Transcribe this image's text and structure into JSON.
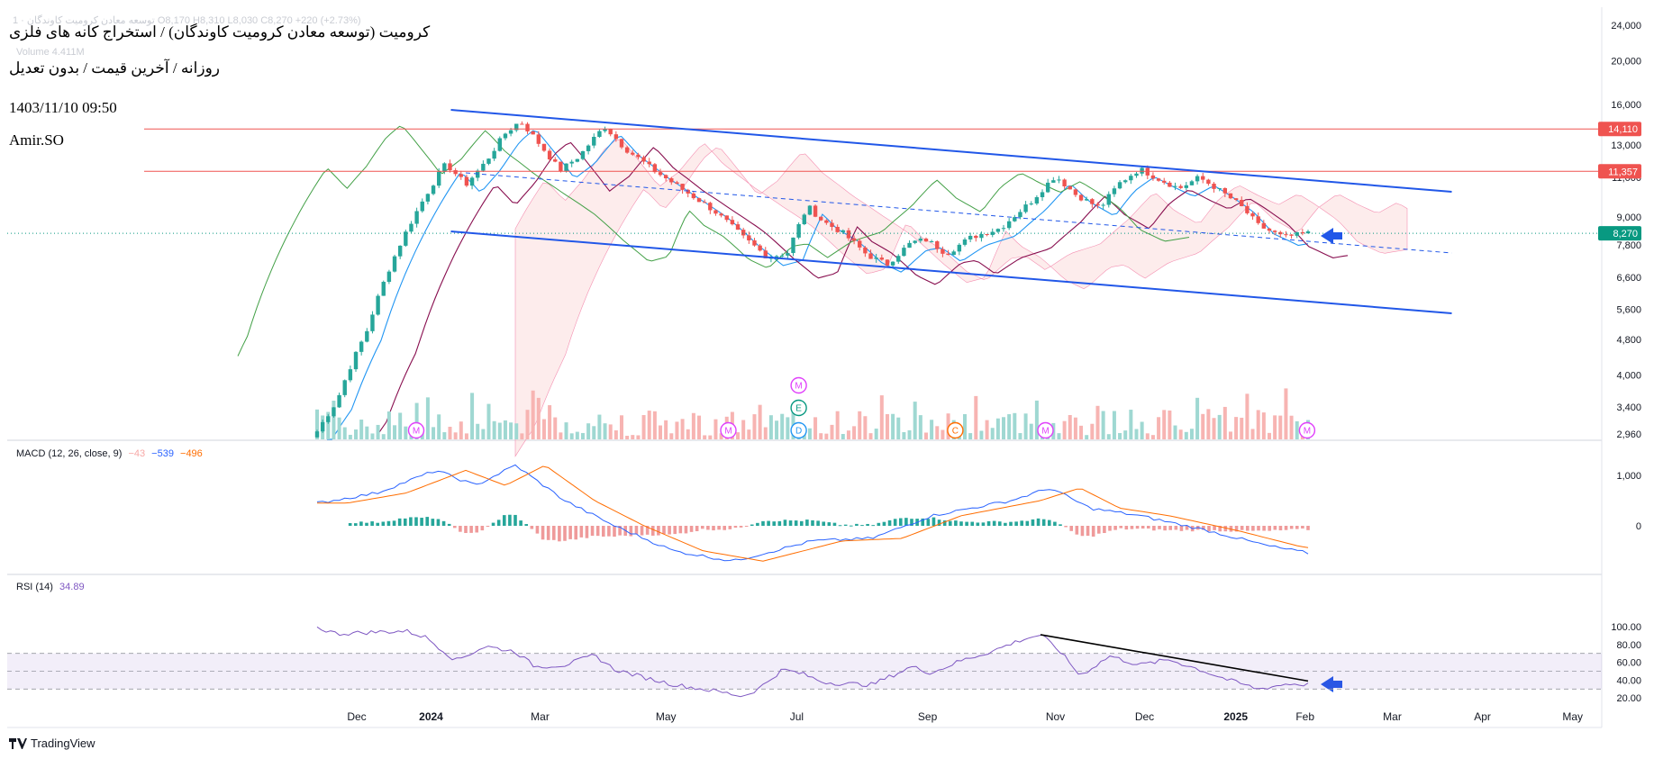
{
  "header": {
    "faint_ohlc": "1 · توسعه معادن کرومیت کاوندگان  O8,170  H8,310  L8,030  C8,270  +220 (+2.73%)",
    "faint_volume": "Volume  4.411M",
    "title": "کرومیت (توسعه معادن کرومیت کاوندگان) / استخراج کانه های فلزی",
    "subtitle": "روزانه / آخرین قیمت / بدون تعدیل",
    "datetime": "1403/11/10 09:50",
    "author": "Amir.SO"
  },
  "colors": {
    "up": "#26a69a",
    "down": "#ef5350",
    "channel": "#2157e8",
    "hline": "#ef5350",
    "rsi": "#7e57c2",
    "macd": "#2962ff",
    "signal": "#ff6d00",
    "last": "#089981"
  },
  "price_axis": {
    "ticks": [
      "24,000",
      "20,000",
      "16,000",
      "13,000",
      "11,000",
      "9,000",
      "7,800",
      "6,600",
      "5,600",
      "4,800",
      "4,000",
      "3,400",
      "2,960"
    ],
    "levels": [
      {
        "label": "14,110",
        "value": 14110
      },
      {
        "label": "11,357",
        "value": 11357
      }
    ],
    "last": {
      "label": "8,270",
      "value": 8270
    }
  },
  "macd": {
    "label": "MACD (12, 26, close, 9)",
    "hist": "−43",
    "macd": "−539",
    "signal": "−496",
    "ticks": [
      "1,000",
      "0"
    ]
  },
  "rsi": {
    "label": "RSI (14)",
    "value": "34.89",
    "ticks": [
      "100.00",
      "80.00",
      "60.00",
      "40.00",
      "20.00"
    ]
  },
  "time_axis": {
    "labels": [
      {
        "label": "Dec",
        "t": 0.0
      },
      {
        "label": "2024",
        "t": 0.075,
        "bold": true
      },
      {
        "label": "Mar",
        "t": 0.185
      },
      {
        "label": "May",
        "t": 0.312
      },
      {
        "label": "Jul",
        "t": 0.444
      },
      {
        "label": "Sep",
        "t": 0.576
      },
      {
        "label": "Nov",
        "t": 0.705
      },
      {
        "label": "Dec",
        "t": 0.795
      },
      {
        "label": "2025",
        "t": 0.887,
        "bold": true
      },
      {
        "label": "Feb",
        "t": 0.957
      },
      {
        "label": "Mar",
        "t": 1.045
      },
      {
        "label": "Apr",
        "t": 1.136
      },
      {
        "label": "May",
        "t": 1.227
      }
    ]
  },
  "events": [
    {
      "letter": "M",
      "t": 0.1
    },
    {
      "letter": "M",
      "t": 0.415
    },
    {
      "letter": "D",
      "t": 0.486
    },
    {
      "letter": "E",
      "t": 0.486,
      "stack": 1
    },
    {
      "letter": "M",
      "t": 0.486,
      "stack": 2
    },
    {
      "letter": "C",
      "t": 0.644
    },
    {
      "letter": "M",
      "t": 0.735
    },
    {
      "letter": "M",
      "t": 0.999
    }
  ],
  "footer": {
    "brand": "TradingView"
  },
  "chart_data": {
    "type": "candlestick",
    "title": "کرومیت (توسعه معادن کرومیت کاوندگان) / استخراج کانه های فلزی",
    "interval": "daily",
    "y_scale": "log",
    "ylim": [
      2960,
      24000
    ],
    "overlays": [
      "channel-lines",
      "horizontal-levels",
      "ichimoku"
    ],
    "anchors": [
      {
        "t": 0.0,
        "v": 3000
      },
      {
        "t": 0.02,
        "v": 3500
      },
      {
        "t": 0.05,
        "v": 5000
      },
      {
        "t": 0.08,
        "v": 7500
      },
      {
        "t": 0.1,
        "v": 9200
      },
      {
        "t": 0.115,
        "v": 10500
      },
      {
        "t": 0.13,
        "v": 11800
      },
      {
        "t": 0.15,
        "v": 10600
      },
      {
        "t": 0.17,
        "v": 11900
      },
      {
        "t": 0.19,
        "v": 13800
      },
      {
        "t": 0.205,
        "v": 14700
      },
      {
        "t": 0.225,
        "v": 13000
      },
      {
        "t": 0.245,
        "v": 11400
      },
      {
        "t": 0.265,
        "v": 12300
      },
      {
        "t": 0.29,
        "v": 14300
      },
      {
        "t": 0.31,
        "v": 12800
      },
      {
        "t": 0.34,
        "v": 11400
      },
      {
        "t": 0.37,
        "v": 10300
      },
      {
        "t": 0.4,
        "v": 9300
      },
      {
        "t": 0.43,
        "v": 8100
      },
      {
        "t": 0.455,
        "v": 7300
      },
      {
        "t": 0.475,
        "v": 7500
      },
      {
        "t": 0.495,
        "v": 9500
      },
      {
        "t": 0.51,
        "v": 8800
      },
      {
        "t": 0.53,
        "v": 8300
      },
      {
        "t": 0.555,
        "v": 7400
      },
      {
        "t": 0.575,
        "v": 7050
      },
      {
        "t": 0.6,
        "v": 7900
      },
      {
        "t": 0.615,
        "v": 8000
      },
      {
        "t": 0.635,
        "v": 7450
      },
      {
        "t": 0.66,
        "v": 8100
      },
      {
        "t": 0.69,
        "v": 8500
      },
      {
        "t": 0.72,
        "v": 9700
      },
      {
        "t": 0.745,
        "v": 11100
      },
      {
        "t": 0.765,
        "v": 10100
      },
      {
        "t": 0.79,
        "v": 9400
      },
      {
        "t": 0.81,
        "v": 10700
      },
      {
        "t": 0.83,
        "v": 11500
      },
      {
        "t": 0.85,
        "v": 10900
      },
      {
        "t": 0.87,
        "v": 10400
      },
      {
        "t": 0.89,
        "v": 11000
      },
      {
        "t": 0.905,
        "v": 10500
      },
      {
        "t": 0.93,
        "v": 9600
      },
      {
        "t": 0.95,
        "v": 8600
      },
      {
        "t": 0.975,
        "v": 8100
      },
      {
        "t": 1.0,
        "v": 8270
      }
    ],
    "rsi_anchors": [
      {
        "t": 0.0,
        "v": 99
      },
      {
        "t": 0.02,
        "v": 92
      },
      {
        "t": 0.06,
        "v": 94
      },
      {
        "t": 0.09,
        "v": 95
      },
      {
        "t": 0.11,
        "v": 88
      },
      {
        "t": 0.14,
        "v": 62
      },
      {
        "t": 0.17,
        "v": 78
      },
      {
        "t": 0.2,
        "v": 72
      },
      {
        "t": 0.22,
        "v": 55
      },
      {
        "t": 0.25,
        "v": 57
      },
      {
        "t": 0.28,
        "v": 68
      },
      {
        "t": 0.3,
        "v": 52
      },
      {
        "t": 0.33,
        "v": 43
      },
      {
        "t": 0.36,
        "v": 35
      },
      {
        "t": 0.4,
        "v": 28
      },
      {
        "t": 0.43,
        "v": 22
      },
      {
        "t": 0.445,
        "v": 30
      },
      {
        "t": 0.47,
        "v": 52
      },
      {
        "t": 0.49,
        "v": 47
      },
      {
        "t": 0.51,
        "v": 38
      },
      {
        "t": 0.53,
        "v": 36
      },
      {
        "t": 0.56,
        "v": 35
      },
      {
        "t": 0.6,
        "v": 55
      },
      {
        "t": 0.62,
        "v": 48
      },
      {
        "t": 0.65,
        "v": 62
      },
      {
        "t": 0.68,
        "v": 72
      },
      {
        "t": 0.71,
        "v": 85
      },
      {
        "t": 0.73,
        "v": 91
      },
      {
        "t": 0.75,
        "v": 72
      },
      {
        "t": 0.77,
        "v": 45
      },
      {
        "t": 0.8,
        "v": 67
      },
      {
        "t": 0.83,
        "v": 57
      },
      {
        "t": 0.86,
        "v": 63
      },
      {
        "t": 0.89,
        "v": 52
      },
      {
        "t": 0.92,
        "v": 40
      },
      {
        "t": 0.95,
        "v": 30
      },
      {
        "t": 0.98,
        "v": 36
      },
      {
        "t": 1.0,
        "v": 34.89
      }
    ],
    "macd_anchors": [
      {
        "t": 0.0,
        "v": 450
      },
      {
        "t": 0.06,
        "v": 650
      },
      {
        "t": 0.12,
        "v": 1100
      },
      {
        "t": 0.16,
        "v": 800
      },
      {
        "t": 0.2,
        "v": 1200
      },
      {
        "t": 0.25,
        "v": 500
      },
      {
        "t": 0.3,
        "v": 0
      },
      {
        "t": 0.36,
        "v": -500
      },
      {
        "t": 0.42,
        "v": -700
      },
      {
        "t": 0.5,
        "v": -300
      },
      {
        "t": 0.56,
        "v": -250
      },
      {
        "t": 0.62,
        "v": 200
      },
      {
        "t": 0.7,
        "v": 500
      },
      {
        "t": 0.74,
        "v": 750
      },
      {
        "t": 0.78,
        "v": 350
      },
      {
        "t": 0.83,
        "v": 200
      },
      {
        "t": 0.9,
        "v": -100
      },
      {
        "t": 0.96,
        "v": -400
      },
      {
        "t": 1.0,
        "v": -539
      }
    ]
  }
}
